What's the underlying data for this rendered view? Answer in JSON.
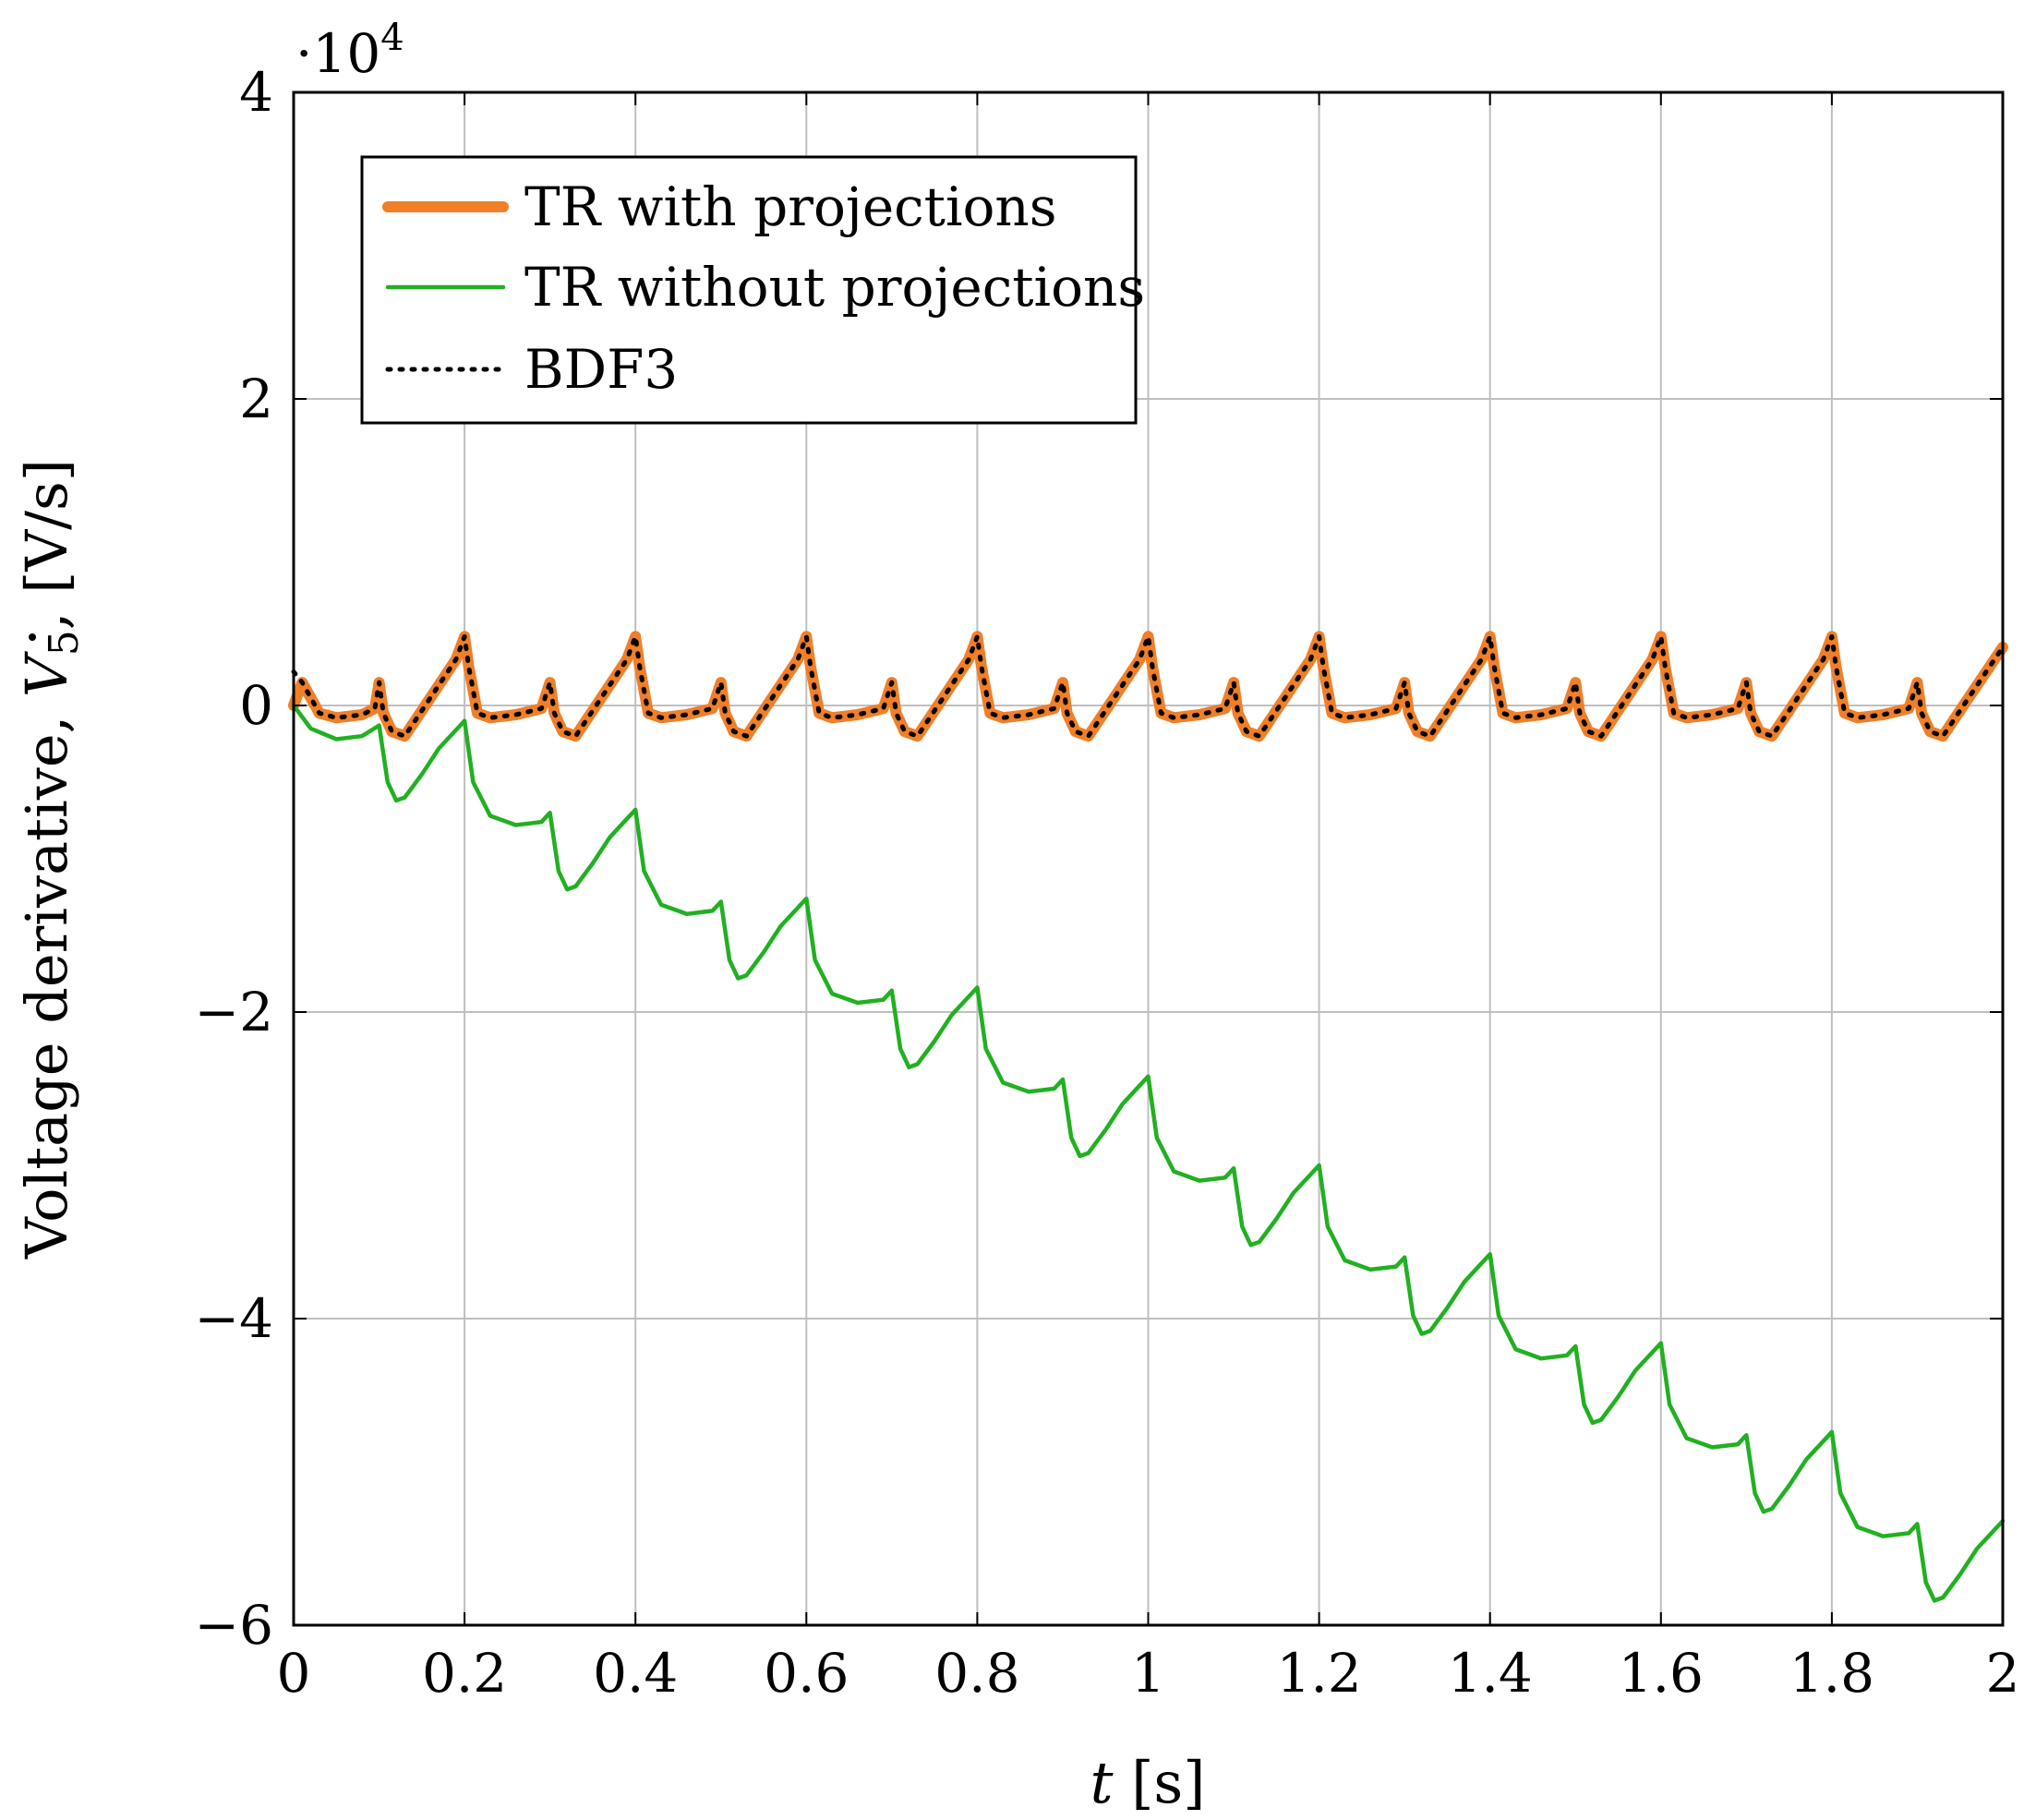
{
  "chart_data": {
    "type": "line",
    "title": "",
    "xlabel": "t [s]",
    "xlabel_var": "t",
    "xlabel_unit": "[s]",
    "ylabel": "Voltage derivative, V̇5, [V/s]",
    "ylabel_prefix": "Voltage derivative,",
    "ylabel_symbol": "V",
    "ylabel_subscript": "5",
    "ylabel_unit": ", [V/s]",
    "y_scale_label": "·10",
    "y_scale_exponent": "4",
    "xlim": [
      0,
      2
    ],
    "ylim": [
      -6,
      4
    ],
    "grid": true,
    "legend_position": "top-left",
    "x_ticks": [
      0,
      0.2,
      0.4,
      0.6,
      0.8,
      1,
      1.2,
      1.4,
      1.6,
      1.8,
      2
    ],
    "x_tick_labels": [
      "0",
      "0.2",
      "0.4",
      "0.6",
      "0.8",
      "1",
      "1.2",
      "1.4",
      "1.6",
      "1.8",
      "2"
    ],
    "y_ticks": [
      4,
      2,
      0,
      -2,
      -4,
      -6
    ],
    "y_tick_labels": [
      "4",
      "2",
      "0",
      "−2",
      "−4",
      "−6"
    ],
    "colors": {
      "orange": "#f07f28",
      "green": "#21b021",
      "black": "#000000",
      "grid": "#bfbfbf"
    },
    "series": [
      {
        "name": "TR with projections",
        "style": "solid-thick",
        "color": "#f07f28",
        "x": [
          0,
          0.01,
          0.03,
          0.05,
          0.08,
          0.095,
          0.1,
          0.105,
          0.115,
          0.13,
          0.16,
          0.19,
          0.2,
          0.205,
          0.215,
          0.23,
          0.26,
          0.29,
          0.3,
          0.305,
          0.315,
          0.33,
          0.36,
          0.39,
          0.4,
          0.405,
          0.415,
          0.43,
          0.46,
          0.49,
          0.5,
          0.505,
          0.515,
          0.53,
          0.56,
          0.59,
          0.6,
          0.605,
          0.615,
          0.63,
          0.66,
          0.69,
          0.7,
          0.705,
          0.715,
          0.73,
          0.76,
          0.79,
          0.8,
          0.805,
          0.815,
          0.83,
          0.86,
          0.89,
          0.9,
          0.905,
          0.915,
          0.93,
          0.96,
          0.99,
          1.0,
          1.005,
          1.015,
          1.03,
          1.06,
          1.09,
          1.1,
          1.105,
          1.115,
          1.13,
          1.16,
          1.19,
          1.2,
          1.205,
          1.215,
          1.23,
          1.26,
          1.29,
          1.3,
          1.305,
          1.315,
          1.33,
          1.36,
          1.39,
          1.4,
          1.405,
          1.415,
          1.43,
          1.46,
          1.49,
          1.5,
          1.505,
          1.515,
          1.53,
          1.56,
          1.59,
          1.6,
          1.605,
          1.615,
          1.63,
          1.66,
          1.69,
          1.7,
          1.705,
          1.715,
          1.73,
          1.76,
          1.79,
          1.8,
          1.805,
          1.815,
          1.83,
          1.86,
          1.89,
          1.9,
          1.905,
          1.915,
          1.93,
          1.96,
          2.0
        ],
        "y": [
          0.0,
          0.15,
          -0.05,
          -0.08,
          -0.06,
          -0.02,
          0.15,
          -0.05,
          -0.17,
          -0.2,
          0.05,
          0.3,
          0.45,
          0.25,
          -0.05,
          -0.08,
          -0.06,
          -0.02,
          0.15,
          -0.05,
          -0.17,
          -0.2,
          0.05,
          0.3,
          0.45,
          0.25,
          -0.05,
          -0.08,
          -0.06,
          -0.02,
          0.15,
          -0.05,
          -0.17,
          -0.2,
          0.05,
          0.3,
          0.45,
          0.25,
          -0.05,
          -0.08,
          -0.06,
          -0.02,
          0.15,
          -0.05,
          -0.17,
          -0.2,
          0.05,
          0.3,
          0.45,
          0.25,
          -0.05,
          -0.08,
          -0.06,
          -0.02,
          0.15,
          -0.05,
          -0.17,
          -0.2,
          0.05,
          0.3,
          0.45,
          0.25,
          -0.05,
          -0.08,
          -0.06,
          -0.02,
          0.15,
          -0.05,
          -0.17,
          -0.2,
          0.05,
          0.3,
          0.45,
          0.25,
          -0.05,
          -0.08,
          -0.06,
          -0.02,
          0.15,
          -0.05,
          -0.17,
          -0.2,
          0.05,
          0.3,
          0.45,
          0.25,
          -0.05,
          -0.08,
          -0.06,
          -0.02,
          0.15,
          -0.05,
          -0.17,
          -0.2,
          0.05,
          0.3,
          0.45,
          0.25,
          -0.05,
          -0.08,
          -0.06,
          -0.02,
          0.15,
          -0.05,
          -0.17,
          -0.2,
          0.05,
          0.3,
          0.45,
          0.25,
          -0.05,
          -0.08,
          -0.06,
          -0.02,
          0.15,
          -0.05,
          -0.17,
          -0.2,
          0.05,
          0.38
        ]
      },
      {
        "name": "TR without projections",
        "style": "solid",
        "color": "#21b021",
        "x": [
          0,
          0.02,
          0.05,
          0.08,
          0.1,
          0.11,
          0.12,
          0.13,
          0.15,
          0.17,
          0.19,
          0.2,
          0.21,
          0.23,
          0.26,
          0.29,
          0.3,
          0.31,
          0.32,
          0.33,
          0.35,
          0.37,
          0.39,
          0.4,
          0.41,
          0.43,
          0.46,
          0.49,
          0.5,
          0.51,
          0.52,
          0.53,
          0.55,
          0.57,
          0.59,
          0.6,
          0.61,
          0.63,
          0.66,
          0.69,
          0.7,
          0.71,
          0.72,
          0.73,
          0.75,
          0.77,
          0.79,
          0.8,
          0.81,
          0.83,
          0.86,
          0.89,
          0.9,
          0.91,
          0.92,
          0.93,
          0.95,
          0.97,
          0.99,
          1.0,
          1.01,
          1.03,
          1.06,
          1.09,
          1.1,
          1.11,
          1.12,
          1.13,
          1.15,
          1.17,
          1.19,
          1.2,
          1.21,
          1.23,
          1.26,
          1.29,
          1.3,
          1.31,
          1.32,
          1.33,
          1.35,
          1.37,
          1.39,
          1.4,
          1.41,
          1.43,
          1.46,
          1.49,
          1.5,
          1.51,
          1.52,
          1.53,
          1.55,
          1.57,
          1.59,
          1.6,
          1.61,
          1.63,
          1.66,
          1.69,
          1.7,
          1.71,
          1.72,
          1.73,
          1.75,
          1.77,
          1.79,
          1.8,
          1.81,
          1.83,
          1.86,
          1.89,
          1.9,
          1.91,
          1.92,
          1.93,
          1.95,
          1.97,
          2.0
        ],
        "y": [
          0.0,
          -0.15,
          -0.22,
          -0.2,
          -0.13,
          -0.5,
          -0.62,
          -0.6,
          -0.45,
          -0.28,
          -0.16,
          -0.1,
          -0.5,
          -0.72,
          -0.78,
          -0.76,
          -0.7,
          -1.08,
          -1.2,
          -1.18,
          -1.03,
          -0.86,
          -0.74,
          -0.68,
          -1.08,
          -1.3,
          -1.36,
          -1.34,
          -1.28,
          -1.66,
          -1.78,
          -1.76,
          -1.61,
          -1.44,
          -1.32,
          -1.26,
          -1.66,
          -1.88,
          -1.94,
          -1.92,
          -1.86,
          -2.24,
          -2.36,
          -2.34,
          -2.19,
          -2.02,
          -1.9,
          -1.84,
          -2.24,
          -2.46,
          -2.52,
          -2.5,
          -2.44,
          -2.82,
          -2.94,
          -2.92,
          -2.77,
          -2.6,
          -2.48,
          -2.42,
          -2.82,
          -3.04,
          -3.1,
          -3.08,
          -3.02,
          -3.4,
          -3.52,
          -3.5,
          -3.35,
          -3.18,
          -3.06,
          -3.0,
          -3.4,
          -3.62,
          -3.68,
          -3.66,
          -3.6,
          -3.98,
          -4.1,
          -4.08,
          -3.93,
          -3.76,
          -3.64,
          -3.58,
          -3.98,
          -4.2,
          -4.26,
          -4.24,
          -4.18,
          -4.56,
          -4.68,
          -4.66,
          -4.51,
          -4.34,
          -4.22,
          -4.16,
          -4.56,
          -4.78,
          -4.84,
          -4.82,
          -4.76,
          -5.14,
          -5.26,
          -5.24,
          -5.09,
          -4.92,
          -4.8,
          -4.74,
          -5.14,
          -5.36,
          -5.42,
          -5.4,
          -5.34,
          -5.72,
          -5.84,
          -5.82,
          -5.67,
          -5.5,
          -5.32
        ]
      },
      {
        "name": "BDF3",
        "style": "dotted",
        "color": "#000000",
        "x": [
          0,
          0.01,
          0.03,
          0.05,
          0.08,
          0.095,
          0.1,
          0.105,
          0.115,
          0.13,
          0.16,
          0.19,
          0.2,
          0.205,
          0.215,
          0.23,
          0.26,
          0.29,
          0.3,
          0.305,
          0.315,
          0.33,
          0.36,
          0.39,
          0.4,
          0.405,
          0.415,
          0.43,
          0.46,
          0.49,
          0.5,
          0.505,
          0.515,
          0.53,
          0.56,
          0.59,
          0.6,
          0.605,
          0.615,
          0.63,
          0.66,
          0.69,
          0.7,
          0.705,
          0.715,
          0.73,
          0.76,
          0.79,
          0.8,
          0.805,
          0.815,
          0.83,
          0.86,
          0.89,
          0.9,
          0.905,
          0.915,
          0.93,
          0.96,
          0.99,
          1.0,
          1.005,
          1.015,
          1.03,
          1.06,
          1.09,
          1.1,
          1.105,
          1.115,
          1.13,
          1.16,
          1.19,
          1.2,
          1.205,
          1.215,
          1.23,
          1.26,
          1.29,
          1.3,
          1.305,
          1.315,
          1.33,
          1.36,
          1.39,
          1.4,
          1.405,
          1.415,
          1.43,
          1.46,
          1.49,
          1.5,
          1.505,
          1.515,
          1.53,
          1.56,
          1.59,
          1.6,
          1.605,
          1.615,
          1.63,
          1.66,
          1.69,
          1.7,
          1.705,
          1.715,
          1.73,
          1.76,
          1.79,
          1.8,
          1.805,
          1.815,
          1.83,
          1.86,
          1.89,
          1.9,
          1.905,
          1.915,
          1.93,
          1.96,
          2.0
        ],
        "y": [
          0.22,
          0.15,
          -0.05,
          -0.08,
          -0.06,
          -0.02,
          0.15,
          -0.05,
          -0.17,
          -0.2,
          0.05,
          0.3,
          0.45,
          0.25,
          -0.05,
          -0.08,
          -0.06,
          -0.02,
          0.15,
          -0.05,
          -0.17,
          -0.2,
          0.05,
          0.3,
          0.45,
          0.25,
          -0.05,
          -0.08,
          -0.06,
          -0.02,
          0.15,
          -0.05,
          -0.17,
          -0.2,
          0.05,
          0.3,
          0.45,
          0.25,
          -0.05,
          -0.08,
          -0.06,
          -0.02,
          0.15,
          -0.05,
          -0.17,
          -0.2,
          0.05,
          0.3,
          0.45,
          0.25,
          -0.05,
          -0.08,
          -0.06,
          -0.02,
          0.15,
          -0.05,
          -0.17,
          -0.2,
          0.05,
          0.3,
          0.45,
          0.25,
          -0.05,
          -0.08,
          -0.06,
          -0.02,
          0.15,
          -0.05,
          -0.17,
          -0.2,
          0.05,
          0.3,
          0.45,
          0.25,
          -0.05,
          -0.08,
          -0.06,
          -0.02,
          0.15,
          -0.05,
          -0.17,
          -0.2,
          0.05,
          0.3,
          0.45,
          0.25,
          -0.05,
          -0.08,
          -0.06,
          -0.02,
          0.15,
          -0.05,
          -0.17,
          -0.2,
          0.05,
          0.3,
          0.45,
          0.25,
          -0.05,
          -0.08,
          -0.06,
          -0.02,
          0.15,
          -0.05,
          -0.17,
          -0.2,
          0.05,
          0.3,
          0.45,
          0.25,
          -0.05,
          -0.08,
          -0.06,
          -0.02,
          0.15,
          -0.05,
          -0.17,
          -0.2,
          0.05,
          0.38
        ]
      }
    ]
  }
}
